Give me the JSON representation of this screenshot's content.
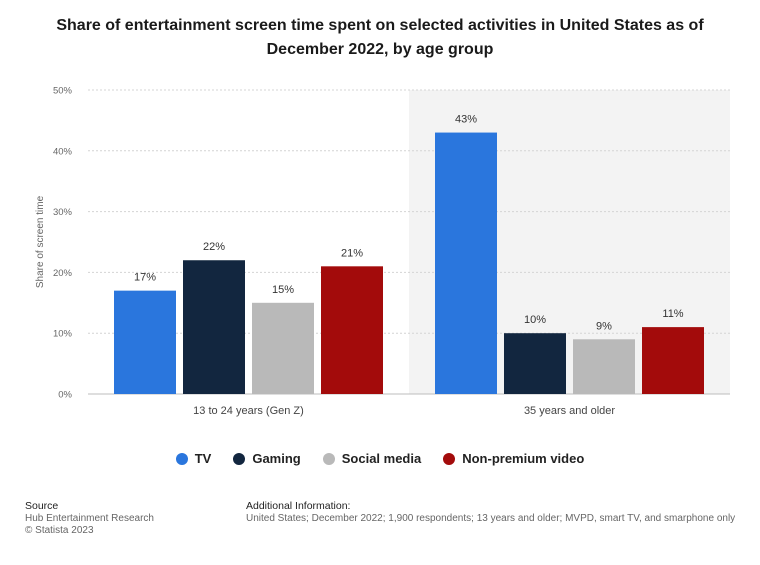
{
  "title": "Share of entertainment screen time spent on selected activities in United States as of December 2022, by age group",
  "chart_data": {
    "type": "bar",
    "categories": [
      "13 to 24 years (Gen Z)",
      "35 years and older"
    ],
    "series": [
      {
        "name": "TV",
        "color": "#2a76dd",
        "values": [
          17,
          43
        ],
        "labels": [
          "17%",
          "43%"
        ]
      },
      {
        "name": "Gaming",
        "color": "#12263f",
        "values": [
          22,
          10
        ],
        "labels": [
          "22%",
          "10%"
        ]
      },
      {
        "name": "Social media",
        "color": "#b9b9b9",
        "values": [
          15,
          9
        ],
        "labels": [
          "15%",
          "9%"
        ]
      },
      {
        "name": "Non-premium video",
        "color": "#a30b0b",
        "values": [
          21,
          11
        ],
        "labels": [
          "21%",
          "11%"
        ]
      }
    ],
    "ylabel": "Share of screen time",
    "ylim": [
      0,
      50
    ],
    "yticks": [
      "0%",
      "10%",
      "20%",
      "30%",
      "40%",
      "50%"
    ],
    "grid": true,
    "legend_position": "bottom"
  },
  "footer": {
    "source_heading": "Source",
    "source_lines": [
      "Hub Entertainment Research",
      "© Statista 2023"
    ],
    "info_heading": "Additional Information:",
    "info_text": "United States; December 2022; 1,900 respondents; 13 years and older; MVPD, smart TV, and smarphone only"
  }
}
